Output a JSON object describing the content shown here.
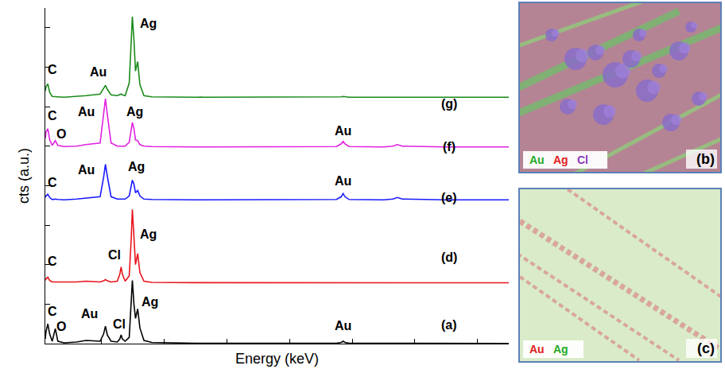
{
  "chart_data": {
    "type": "line",
    "x_label": "Energy (keV)",
    "y_label": "cts (a.u.)",
    "xlim": [
      0.2,
      15
    ],
    "xticks": [
      2,
      4,
      6,
      8,
      10,
      12,
      14
    ],
    "ylim": [
      0,
      42.5
    ],
    "yticks": [
      0,
      5,
      10,
      15,
      20,
      25,
      30,
      35,
      40
    ],
    "grid": false,
    "tick_labels": false,
    "x": [
      0.2,
      0.22,
      0.28,
      0.34,
      0.42,
      0.52,
      0.6,
      0.8,
      1.2,
      1.5,
      1.95,
      2.06,
      2.12,
      2.18,
      2.3,
      2.5,
      2.58,
      2.62,
      2.66,
      2.75,
      2.88,
      2.94,
      2.98,
      3.03,
      3.08,
      3.15,
      3.22,
      3.35,
      3.6,
      5,
      7,
      9.5,
      9.65,
      9.71,
      9.77,
      9.9,
      11,
      11.3,
      11.44,
      11.6,
      13,
      15
    ],
    "series": [
      {
        "color": "#000000",
        "values": [
          0.6,
          1.5,
          2.5,
          1.2,
          0.3,
          1.9,
          0.3,
          0.1,
          0.2,
          0.4,
          0.3,
          1.2,
          2.2,
          1.1,
          0.3,
          0.2,
          0.6,
          1.1,
          0.6,
          0.3,
          0.8,
          4.5,
          8.0,
          5.0,
          3.2,
          4.4,
          2.0,
          0.4,
          0.15,
          0.05,
          0.05,
          0.05,
          0.15,
          0.3,
          0.15,
          0.05,
          0.05,
          0.05,
          0.08,
          0.05,
          0.03,
          0.03
        ]
      },
      {
        "color": "#e8141c",
        "values": [
          8.0,
          8.2,
          8.4,
          8.0,
          7.8,
          7.8,
          7.75,
          7.75,
          7.8,
          7.9,
          7.8,
          7.95,
          8.1,
          7.95,
          7.8,
          7.9,
          8.8,
          9.7,
          8.8,
          7.9,
          8.6,
          13.0,
          17.0,
          13.5,
          10.0,
          11.4,
          9.0,
          7.9,
          7.75,
          7.72,
          7.7,
          7.7,
          7.7,
          7.72,
          7.7,
          7.7,
          7.7,
          7.7,
          7.7,
          7.7,
          7.7,
          7.7
        ]
      },
      {
        "color": "#1a1aff",
        "values": [
          18.5,
          18.7,
          18.9,
          18.5,
          18.25,
          18.3,
          18.25,
          18.2,
          18.3,
          18.4,
          18.6,
          21.0,
          22.7,
          21.2,
          18.6,
          18.3,
          18.3,
          18.3,
          18.3,
          18.3,
          18.7,
          20.0,
          20.7,
          20.2,
          19.1,
          19.4,
          18.7,
          18.3,
          18.25,
          18.2,
          18.2,
          18.25,
          18.6,
          19.0,
          18.6,
          18.25,
          18.2,
          18.3,
          18.5,
          18.3,
          18.2,
          18.2
        ]
      },
      {
        "color": "#e020e0",
        "values": [
          26.0,
          26.8,
          27.2,
          25.8,
          25.1,
          25.7,
          25.1,
          24.95,
          25.0,
          25.2,
          25.4,
          29.0,
          31.0,
          29.0,
          25.4,
          25.0,
          25.0,
          25.0,
          25.0,
          25.0,
          25.5,
          27.0,
          28.0,
          27.2,
          25.8,
          25.7,
          25.2,
          25.0,
          24.95,
          24.9,
          24.9,
          24.95,
          25.3,
          25.6,
          25.3,
          24.95,
          24.9,
          25.0,
          25.2,
          25.0,
          24.9,
          24.9
        ]
      },
      {
        "color": "#1a8a1a",
        "values": [
          32.0,
          32.5,
          32.9,
          31.8,
          31.3,
          31.3,
          31.25,
          31.2,
          31.3,
          31.4,
          31.6,
          32.3,
          32.7,
          32.2,
          31.5,
          31.4,
          31.5,
          31.6,
          31.5,
          31.4,
          33.0,
          38.0,
          41.4,
          38.5,
          34.5,
          35.7,
          32.8,
          31.4,
          31.25,
          31.2,
          31.2,
          31.2,
          31.25,
          31.3,
          31.25,
          31.2,
          31.2,
          31.2,
          31.2,
          31.2,
          31.2,
          31.2
        ]
      }
    ],
    "annotations": [
      {
        "text": "C",
        "x": 0.42,
        "y": 34.7
      },
      {
        "text": "Au",
        "x": 1.9,
        "y": 34.4
      },
      {
        "text": "Ag",
        "x": 3.5,
        "y": 40.5
      },
      {
        "text": "(g)",
        "x": 13.1,
        "y": 30.4
      },
      {
        "text": "C",
        "x": 0.42,
        "y": 28.9
      },
      {
        "text": "O",
        "x": 0.72,
        "y": 26.5
      },
      {
        "text": "Au",
        "x": 1.5,
        "y": 29.4
      },
      {
        "text": "Ag",
        "x": 3.05,
        "y": 29.4
      },
      {
        "text": "Au",
        "x": 9.71,
        "y": 26.9
      },
      {
        "text": "(f)",
        "x": 13.1,
        "y": 24.9
      },
      {
        "text": "C",
        "x": 0.42,
        "y": 20.4
      },
      {
        "text": "Au",
        "x": 1.5,
        "y": 22.0
      },
      {
        "text": "Ag",
        "x": 3.1,
        "y": 22.4
      },
      {
        "text": "Au",
        "x": 9.71,
        "y": 20.6
      },
      {
        "text": "(e)",
        "x": 13.1,
        "y": 18.5
      },
      {
        "text": "C",
        "x": 0.42,
        "y": 10.4
      },
      {
        "text": "Cl",
        "x": 2.4,
        "y": 11.2
      },
      {
        "text": "Ag",
        "x": 3.5,
        "y": 13.8
      },
      {
        "text": "(d)",
        "x": 13.1,
        "y": 10.9
      },
      {
        "text": "C",
        "x": 0.42,
        "y": 4.1
      },
      {
        "text": "O",
        "x": 0.72,
        "y": 2.2
      },
      {
        "text": "Au",
        "x": 1.6,
        "y": 3.8
      },
      {
        "text": "Cl",
        "x": 2.55,
        "y": 2.5
      },
      {
        "text": "Ag",
        "x": 3.55,
        "y": 5.3
      },
      {
        "text": "Au",
        "x": 9.71,
        "y": 2.3
      },
      {
        "text": "(a)",
        "x": 13.1,
        "y": 2.4
      }
    ]
  },
  "panels": [
    {
      "label": "(b)",
      "legend": [
        {
          "text": "Au",
          "color": "#22aa22"
        },
        {
          "text": "Ag",
          "color": "#e02020"
        },
        {
          "text": "Cl",
          "color": "#8a3ab9"
        }
      ]
    },
    {
      "label": "(c)",
      "legend": [
        {
          "text": "Au",
          "color": "#e02020"
        },
        {
          "text": "Ag",
          "color": "#22aa22"
        }
      ]
    }
  ]
}
